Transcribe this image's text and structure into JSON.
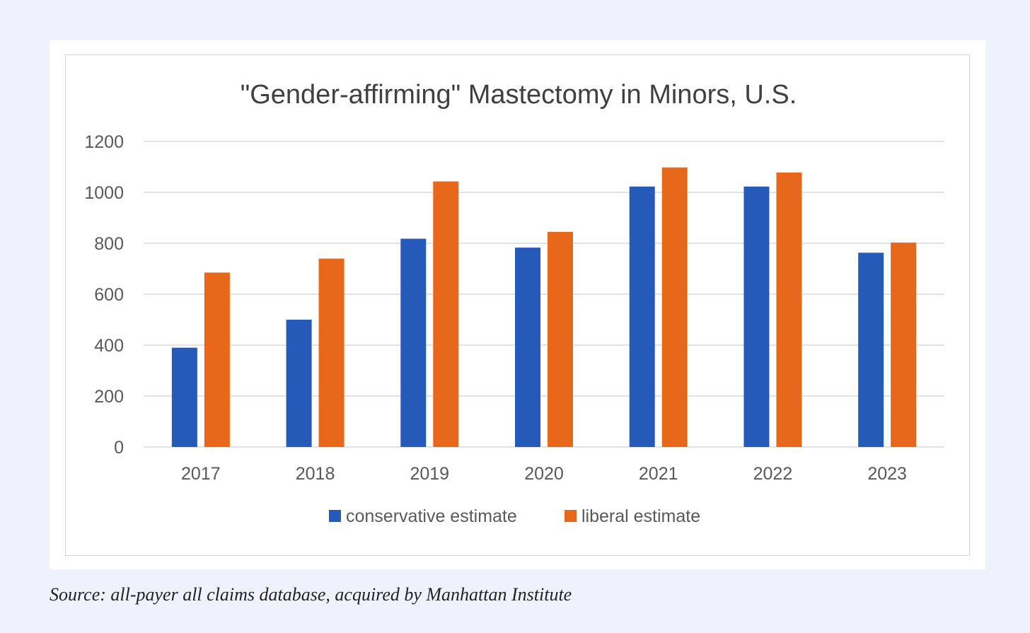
{
  "colors": {
    "conservative": "#255ab8",
    "liberal": "#e8681b",
    "grid": "#d9d9d9",
    "text": "#595959",
    "title": "#404040"
  },
  "chart_data": {
    "type": "bar",
    "title": "\"Gender-affirming\" Mastectomy in Minors, U.S.",
    "categories": [
      "2017",
      "2018",
      "2019",
      "2020",
      "2021",
      "2022",
      "2023"
    ],
    "series": [
      {
        "name": "conservative estimate",
        "values": [
          390,
          500,
          818,
          783,
          1023,
          1023,
          763
        ]
      },
      {
        "name": "liberal estimate",
        "values": [
          685,
          740,
          1043,
          845,
          1098,
          1078,
          803
        ]
      }
    ],
    "ylim": [
      0,
      1200
    ],
    "yticks": [
      "0",
      "200",
      "400",
      "600",
      "800",
      "1000",
      "1200"
    ],
    "xlabel": "",
    "ylabel": "",
    "grid": true,
    "legend_position": "bottom"
  },
  "caption": "Source: all-payer all claims database, acquired by Manhattan Institute"
}
